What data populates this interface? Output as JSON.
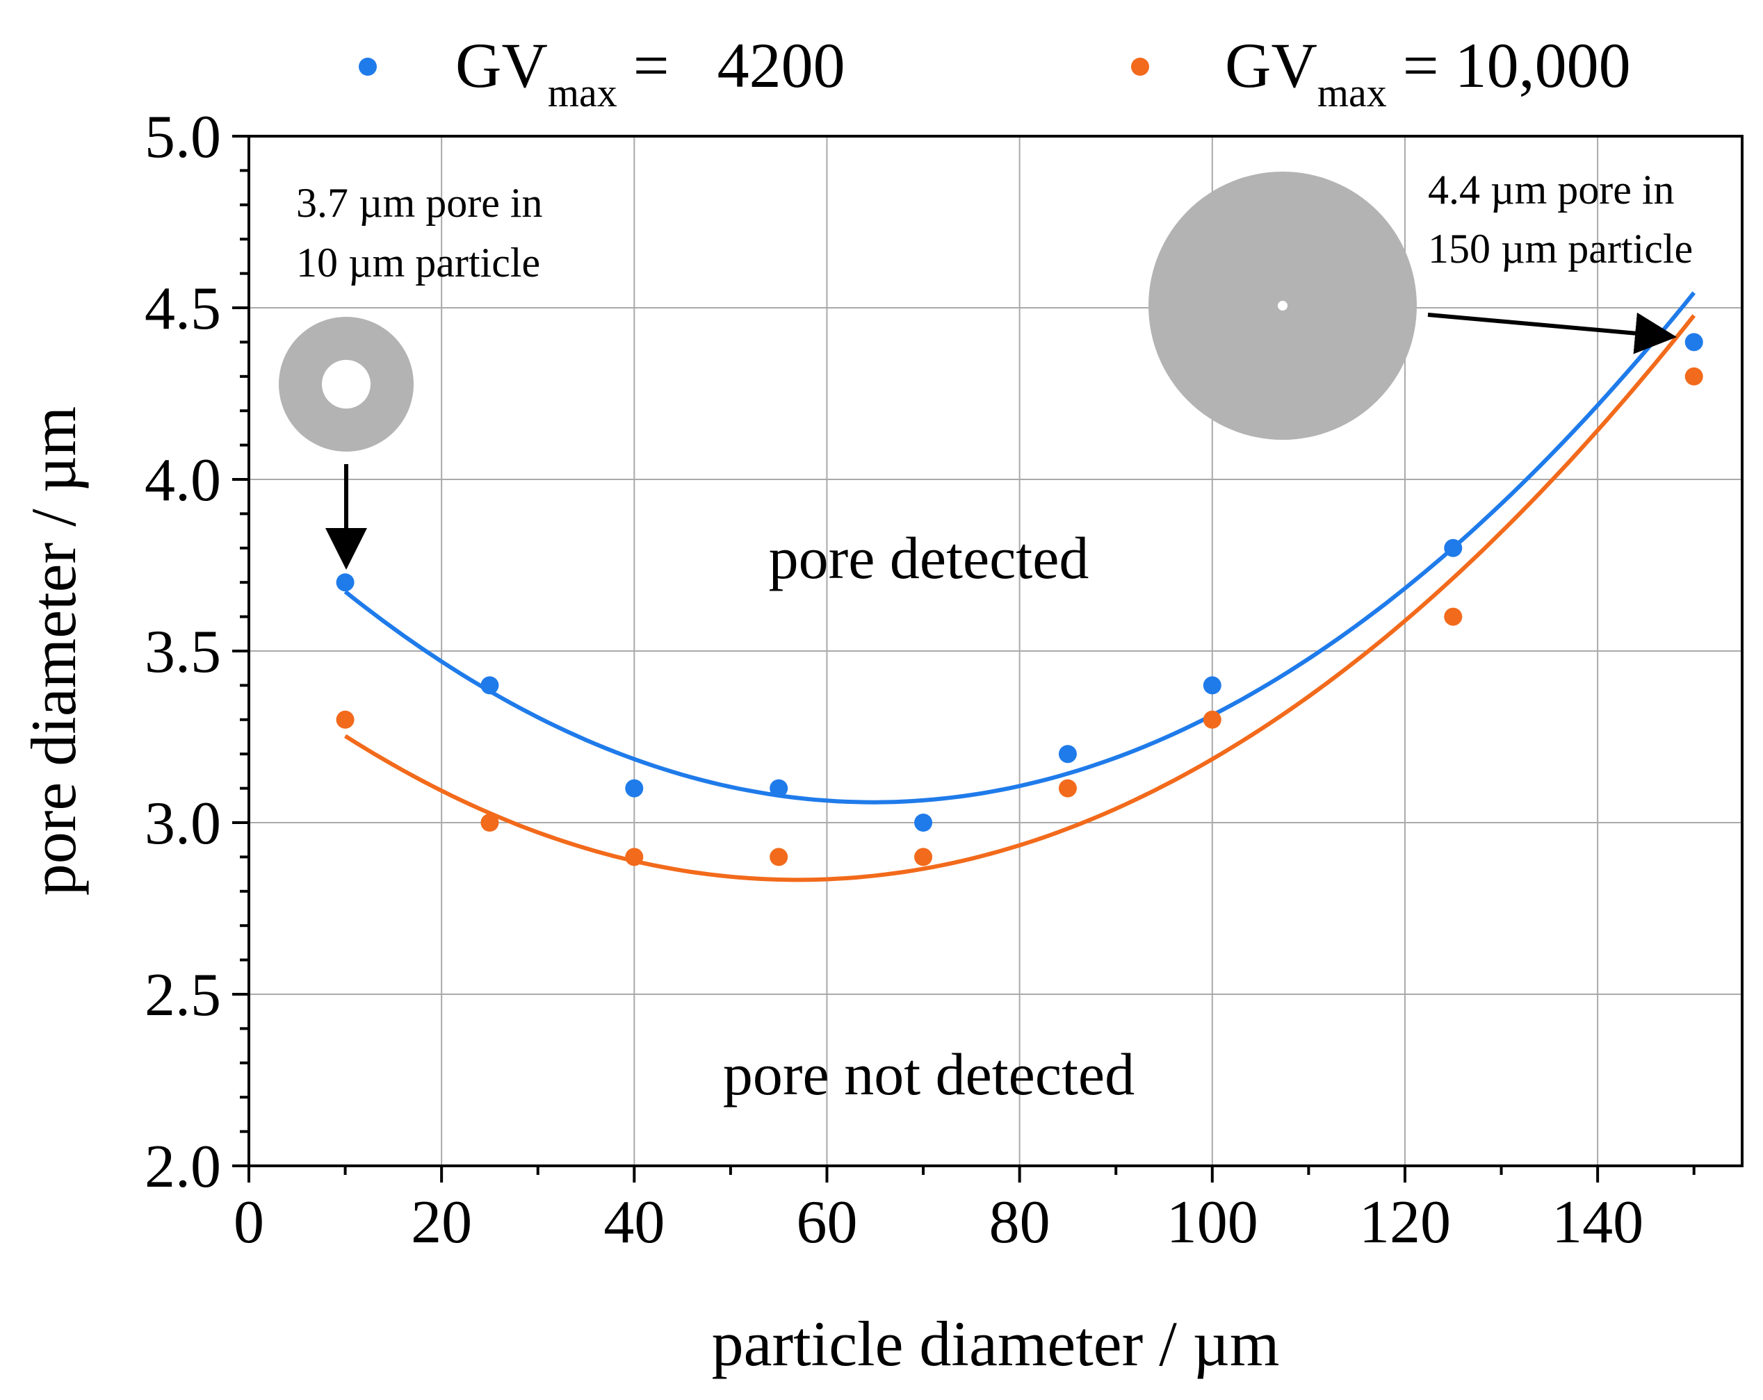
{
  "chart_data": {
    "type": "scatter",
    "xlabel": "particle diameter / µm",
    "ylabel": "pore diameter / µm",
    "xlim": [
      0,
      155
    ],
    "ylim": [
      2.0,
      5.0
    ],
    "x_ticks": [
      0,
      20,
      40,
      60,
      80,
      100,
      120,
      140
    ],
    "x_tick_labels": [
      "0",
      "20",
      "40",
      "60",
      "80",
      "100",
      "120",
      "140"
    ],
    "y_ticks": [
      2.0,
      2.5,
      3.0,
      3.5,
      4.0,
      4.5,
      5.0
    ],
    "y_tick_labels": [
      "2.0",
      "2.5",
      "3.0",
      "3.5",
      "4.0",
      "4.5",
      "5.0"
    ],
    "grid": true,
    "legend_position": "top",
    "series": [
      {
        "name": "GVmax = 4200",
        "legend_main": "GV",
        "legend_sub": "max",
        "legend_rest": " =   4200",
        "color": "#1f7bea",
        "x": [
          10,
          25,
          40,
          55,
          70,
          85,
          100,
          125,
          150
        ],
        "y": [
          3.7,
          3.4,
          3.1,
          3.1,
          3.0,
          3.2,
          3.4,
          3.8,
          4.4
        ],
        "fit": [
          3.9175,
          -0.02649,
          0.00020444
        ]
      },
      {
        "name": "GVmax = 10,000",
        "legend_main": "GV",
        "legend_sub": "max",
        "legend_rest": " = 10,000",
        "color": "#f26a1b",
        "x": [
          10,
          25,
          40,
          55,
          70,
          85,
          100,
          125,
          150
        ],
        "y": [
          3.3,
          3.0,
          2.9,
          2.9,
          2.9,
          3.1,
          3.3,
          3.6,
          4.3
        ],
        "fit": [
          3.45,
          -0.02165,
          0.00019
        ]
      }
    ],
    "annotations": {
      "pore_detected": "pore detected",
      "pore_not_detected": "pore not detected",
      "small_line1": "3.7 µm pore in",
      "small_line2": "10 µm particle",
      "large_line1": "4.4 µm pore in",
      "large_line2": "150 µm particle"
    },
    "illustration_fill": "#b3b3b3"
  }
}
